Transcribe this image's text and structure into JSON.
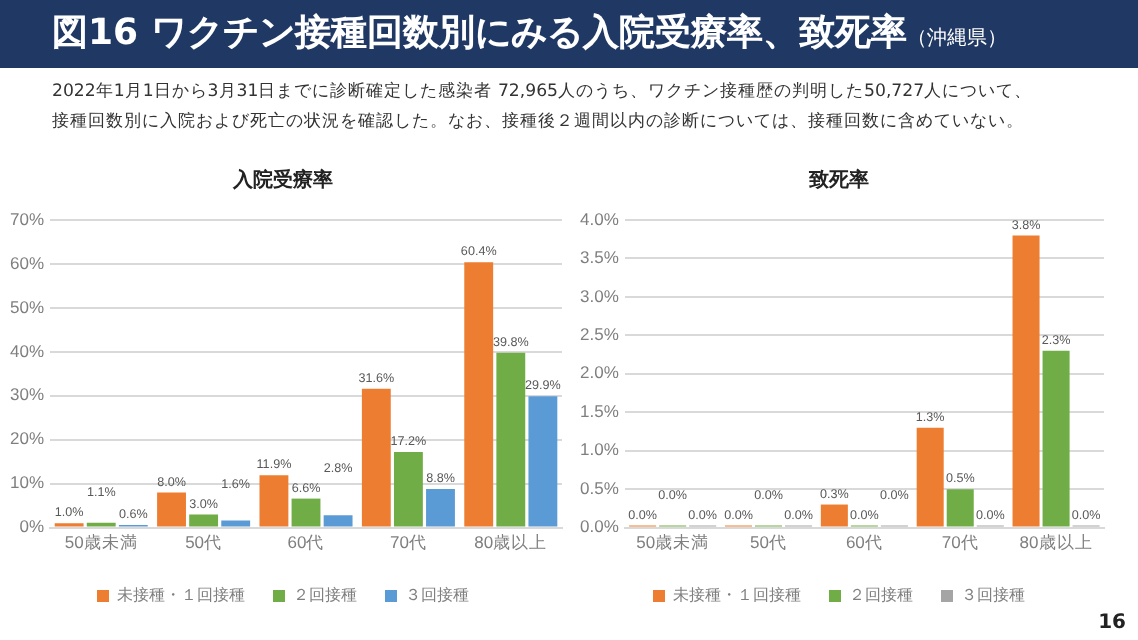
{
  "chart_data": [
    {
      "type": "other",
      "title": "図16 ワクチン接種回数別にみる入院受療率、致死率",
      "subtitle": "（沖縄県）",
      "annotations": [
        "2022年1月1日から3月31日までに診断確定した感染者 72,965人のうち、ワクチン接種歴の判明した50,727人について、",
        "接種回数別に入院および死亡の状況を確認した。なお、接種後２週間以内の診断については、接種回数に含めていない。",
        "16"
      ]
    },
    {
      "type": "bar",
      "title": "入院受療率",
      "categories": [
        "50歳未満",
        "50代",
        "60代",
        "70代",
        "80歳以上"
      ],
      "series": [
        {
          "name": "未接種・１回接種",
          "color": "#ed7d31",
          "values": [
            1.0,
            8.0,
            11.9,
            31.6,
            60.4
          ],
          "value_labels": [
            "1.0%",
            "8.0%",
            "11.9%",
            "31.6%",
            "60.4%"
          ]
        },
        {
          "name": "２回接種",
          "color": "#70ad47",
          "values": [
            1.1,
            3.0,
            6.6,
            17.2,
            39.8
          ],
          "value_labels": [
            "1.1%",
            "3.0%",
            "6.6%",
            "17.2%",
            "39.8%"
          ]
        },
        {
          "name": "３回接種",
          "color": "#5b9bd5",
          "values": [
            0.6,
            1.6,
            2.8,
            8.8,
            29.9
          ],
          "value_labels": [
            "0.6%",
            "1.6%",
            "2.8%",
            "8.8%",
            "29.9%"
          ]
        }
      ],
      "ylim": [
        0,
        70
      ],
      "yticks": [
        {
          "value": 0,
          "label": "0%"
        },
        {
          "value": 10,
          "label": "10%"
        },
        {
          "value": 20,
          "label": "20%"
        },
        {
          "value": 30,
          "label": "30%"
        },
        {
          "value": 40,
          "label": "40%"
        },
        {
          "value": 50,
          "label": "50%"
        },
        {
          "value": 60,
          "label": "60%"
        },
        {
          "value": 70,
          "label": "70%"
        }
      ],
      "grid": "y",
      "legend": "bottom"
    },
    {
      "type": "bar",
      "title": "致死率",
      "categories": [
        "50歳未満",
        "50代",
        "60代",
        "70代",
        "80歳以上"
      ],
      "series": [
        {
          "name": "未接種・１回接種",
          "color": "#ed7d31",
          "values": [
            0.0,
            0.0,
            0.3,
            1.3,
            3.8
          ],
          "value_labels": [
            "0.0%",
            "0.0%",
            "0.3%",
            "1.3%",
            "3.8%"
          ]
        },
        {
          "name": "２回接種",
          "color": "#70ad47",
          "values": [
            0.0,
            0.0,
            0.0,
            0.5,
            2.3
          ],
          "value_labels": [
            "0.0%",
            "0.0%",
            "0.0%",
            "0.5%",
            "2.3%"
          ]
        },
        {
          "name": "３回接種",
          "color": "#a5a5a5",
          "values": [
            0.0,
            0.0,
            0.0,
            0.0,
            0.0
          ],
          "value_labels": [
            "0.0%",
            "0.0%",
            "0.0%",
            "0.0%",
            "0.0%"
          ]
        }
      ],
      "ylim": [
        0,
        4
      ],
      "yticks": [
        {
          "value": 0,
          "label": "0.0%"
        },
        {
          "value": 0.5,
          "label": "0.5%"
        },
        {
          "value": 1,
          "label": "1.0%"
        },
        {
          "value": 1.5,
          "label": "1.5%"
        },
        {
          "value": 2,
          "label": "2.0%"
        },
        {
          "value": 2.5,
          "label": "2.5%"
        },
        {
          "value": 3,
          "label": "3.0%"
        },
        {
          "value": 3.5,
          "label": "3.5%"
        },
        {
          "value": 4,
          "label": "4.0%"
        }
      ],
      "grid": "y",
      "legend": "bottom"
    }
  ]
}
